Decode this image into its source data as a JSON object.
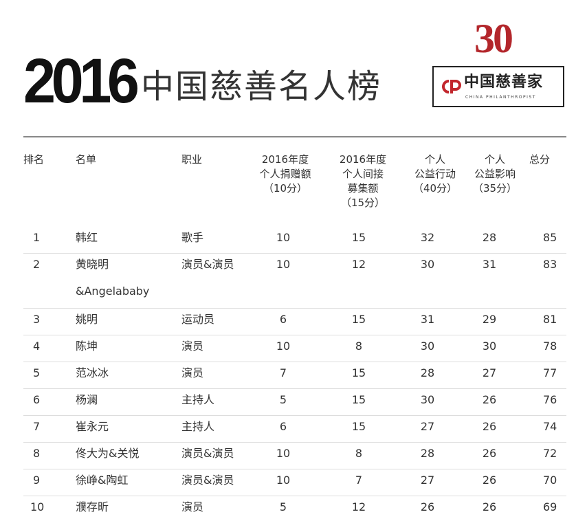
{
  "header": {
    "year": "2016",
    "title": "中国慈善名人榜",
    "issue_number": "30",
    "logo": {
      "name": "中国慈善家",
      "sub": "CHINA PHILANTHROPIST"
    }
  },
  "table": {
    "columns": [
      [
        "排名"
      ],
      [
        "名单"
      ],
      [
        "职业"
      ],
      [
        "2016年度",
        "个人捐赠额",
        "（10分）"
      ],
      [
        "2016年度",
        "个人间接",
        "募集额",
        "（15分）"
      ],
      [
        "个人",
        "公益行动",
        "（40分）"
      ],
      [
        "个人",
        "公益影响",
        "（35分）"
      ],
      [
        "总分"
      ]
    ],
    "rows": [
      {
        "rank": "1",
        "name": "韩红",
        "job": "歌手",
        "donation": "10",
        "indirect": "15",
        "action": "32",
        "influence": "28",
        "total": "85"
      },
      {
        "rank": "2",
        "name": "黄晓明",
        "name_cont": "&Angelababy",
        "job": "演员&演员",
        "donation": "10",
        "indirect": "12",
        "action": "30",
        "influence": "31",
        "total": "83"
      },
      {
        "rank": "3",
        "name": "姚明",
        "job": "运动员",
        "donation": "6",
        "indirect": "15",
        "action": "31",
        "influence": "29",
        "total": "81"
      },
      {
        "rank": "4",
        "name": "陈坤",
        "job": "演员",
        "donation": "10",
        "indirect": "8",
        "action": "30",
        "influence": "30",
        "total": "78"
      },
      {
        "rank": "5",
        "name": "范冰冰",
        "job": "演员",
        "donation": "7",
        "indirect": "15",
        "action": "28",
        "influence": "27",
        "total": "77"
      },
      {
        "rank": "6",
        "name": "杨澜",
        "job": "主持人",
        "donation": "5",
        "indirect": "15",
        "action": "30",
        "influence": "26",
        "total": "76"
      },
      {
        "rank": "7",
        "name": "崔永元",
        "job": "主持人",
        "donation": "6",
        "indirect": "15",
        "action": "27",
        "influence": "26",
        "total": "74"
      },
      {
        "rank": "8",
        "name": "佟大为&关悦",
        "job": "演员&演员",
        "donation": "10",
        "indirect": "8",
        "action": "28",
        "influence": "26",
        "total": "72"
      },
      {
        "rank": "9",
        "name": "徐峥&陶虹",
        "job": "演员&演员",
        "donation": "10",
        "indirect": "7",
        "action": "27",
        "influence": "26",
        "total": "70"
      },
      {
        "rank": "10",
        "name": "濮存昕",
        "job": "演员",
        "donation": "5",
        "indirect": "12",
        "action": "26",
        "influence": "26",
        "total": "69"
      }
    ]
  }
}
